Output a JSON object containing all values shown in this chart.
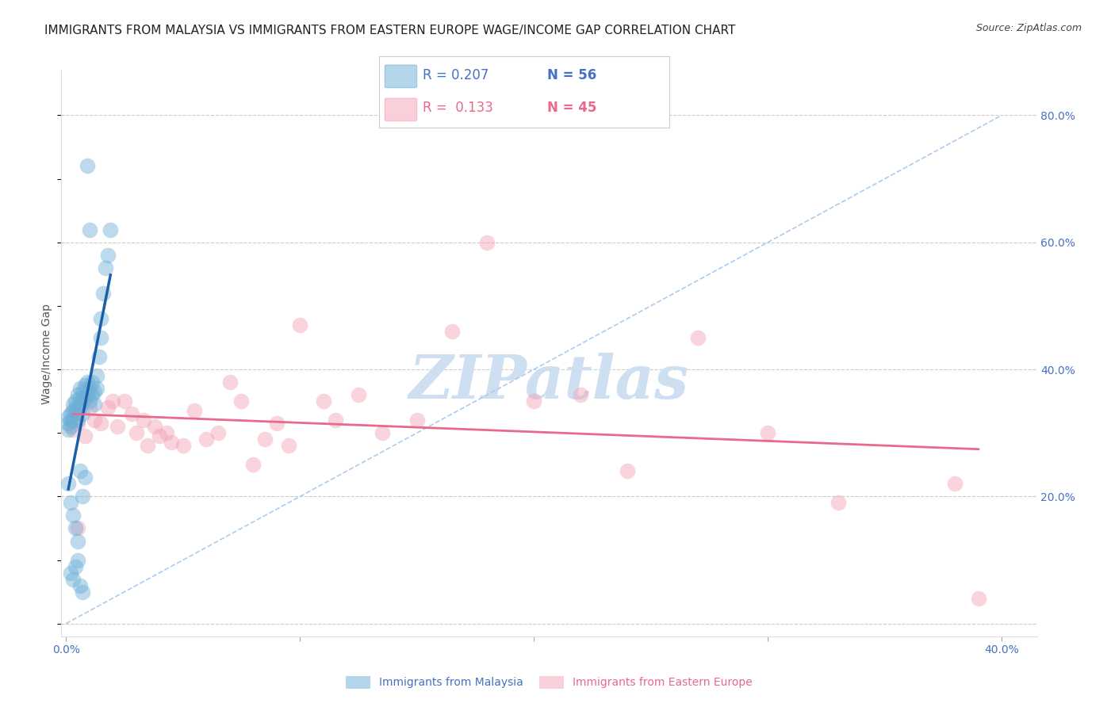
{
  "title": "IMMIGRANTS FROM MALAYSIA VS IMMIGRANTS FROM EASTERN EUROPE WAGE/INCOME GAP CORRELATION CHART",
  "source": "Source: ZipAtlas.com",
  "ylabel": "Wage/Income Gap",
  "right_yticklabels": [
    "",
    "20.0%",
    "40.0%",
    "60.0%",
    "80.0%"
  ],
  "right_ytick_vals": [
    0.0,
    0.2,
    0.4,
    0.6,
    0.8
  ],
  "xticklabels": [
    "0.0%",
    "",
    "",
    "",
    "40.0%"
  ],
  "xtick_vals": [
    0.0,
    0.1,
    0.2,
    0.3,
    0.4
  ],
  "xlim": [
    -0.002,
    0.415
  ],
  "ylim": [
    -0.02,
    0.87
  ],
  "malaysia_color": "#6baed6",
  "eastern_color": "#f4a0b5",
  "malaysia_R": 0.207,
  "malaysia_N": 56,
  "eastern_R": 0.133,
  "eastern_N": 45,
  "malaysia_scatter_x": [
    0.001,
    0.001,
    0.001,
    0.002,
    0.002,
    0.002,
    0.003,
    0.003,
    0.003,
    0.004,
    0.004,
    0.004,
    0.005,
    0.005,
    0.005,
    0.006,
    0.006,
    0.006,
    0.007,
    0.007,
    0.007,
    0.008,
    0.008,
    0.009,
    0.009,
    0.01,
    0.01,
    0.011,
    0.011,
    0.012,
    0.012,
    0.013,
    0.013,
    0.014,
    0.015,
    0.015,
    0.016,
    0.017,
    0.018,
    0.019,
    0.001,
    0.002,
    0.003,
    0.004,
    0.005,
    0.006,
    0.007,
    0.008,
    0.002,
    0.003,
    0.004,
    0.005,
    0.006,
    0.007,
    0.009,
    0.01
  ],
  "malaysia_scatter_y": [
    0.315,
    0.325,
    0.305,
    0.33,
    0.32,
    0.31,
    0.335,
    0.345,
    0.32,
    0.34,
    0.35,
    0.33,
    0.36,
    0.34,
    0.32,
    0.355,
    0.37,
    0.34,
    0.365,
    0.35,
    0.33,
    0.375,
    0.355,
    0.38,
    0.36,
    0.37,
    0.35,
    0.36,
    0.38,
    0.365,
    0.345,
    0.37,
    0.39,
    0.42,
    0.45,
    0.48,
    0.52,
    0.56,
    0.58,
    0.62,
    0.22,
    0.19,
    0.17,
    0.15,
    0.13,
    0.24,
    0.2,
    0.23,
    0.08,
    0.07,
    0.09,
    0.1,
    0.06,
    0.05,
    0.72,
    0.62
  ],
  "eastern_scatter_x": [
    0.003,
    0.005,
    0.008,
    0.01,
    0.012,
    0.015,
    0.018,
    0.02,
    0.022,
    0.025,
    0.028,
    0.03,
    0.033,
    0.035,
    0.038,
    0.04,
    0.043,
    0.045,
    0.05,
    0.055,
    0.06,
    0.065,
    0.07,
    0.075,
    0.08,
    0.085,
    0.09,
    0.095,
    0.1,
    0.11,
    0.115,
    0.125,
    0.135,
    0.15,
    0.165,
    0.18,
    0.2,
    0.22,
    0.24,
    0.27,
    0.3,
    0.33,
    0.38,
    0.39,
    0.005
  ],
  "eastern_scatter_y": [
    0.305,
    0.315,
    0.295,
    0.34,
    0.32,
    0.315,
    0.34,
    0.35,
    0.31,
    0.35,
    0.33,
    0.3,
    0.32,
    0.28,
    0.31,
    0.295,
    0.3,
    0.285,
    0.28,
    0.335,
    0.29,
    0.3,
    0.38,
    0.35,
    0.25,
    0.29,
    0.315,
    0.28,
    0.47,
    0.35,
    0.32,
    0.36,
    0.3,
    0.32,
    0.46,
    0.6,
    0.35,
    0.36,
    0.24,
    0.45,
    0.3,
    0.19,
    0.22,
    0.04,
    0.15
  ],
  "watermark": "ZIPatlas",
  "watermark_color": "#cddff0",
  "legend_label1": "Immigrants from Malaysia",
  "legend_label2": "Immigrants from Eastern Europe",
  "bg_color": "#ffffff",
  "grid_color": "#cccccc",
  "axis_color": "#4472c4",
  "title_fontsize": 11,
  "tick_fontsize": 10,
  "ylabel_fontsize": 10
}
